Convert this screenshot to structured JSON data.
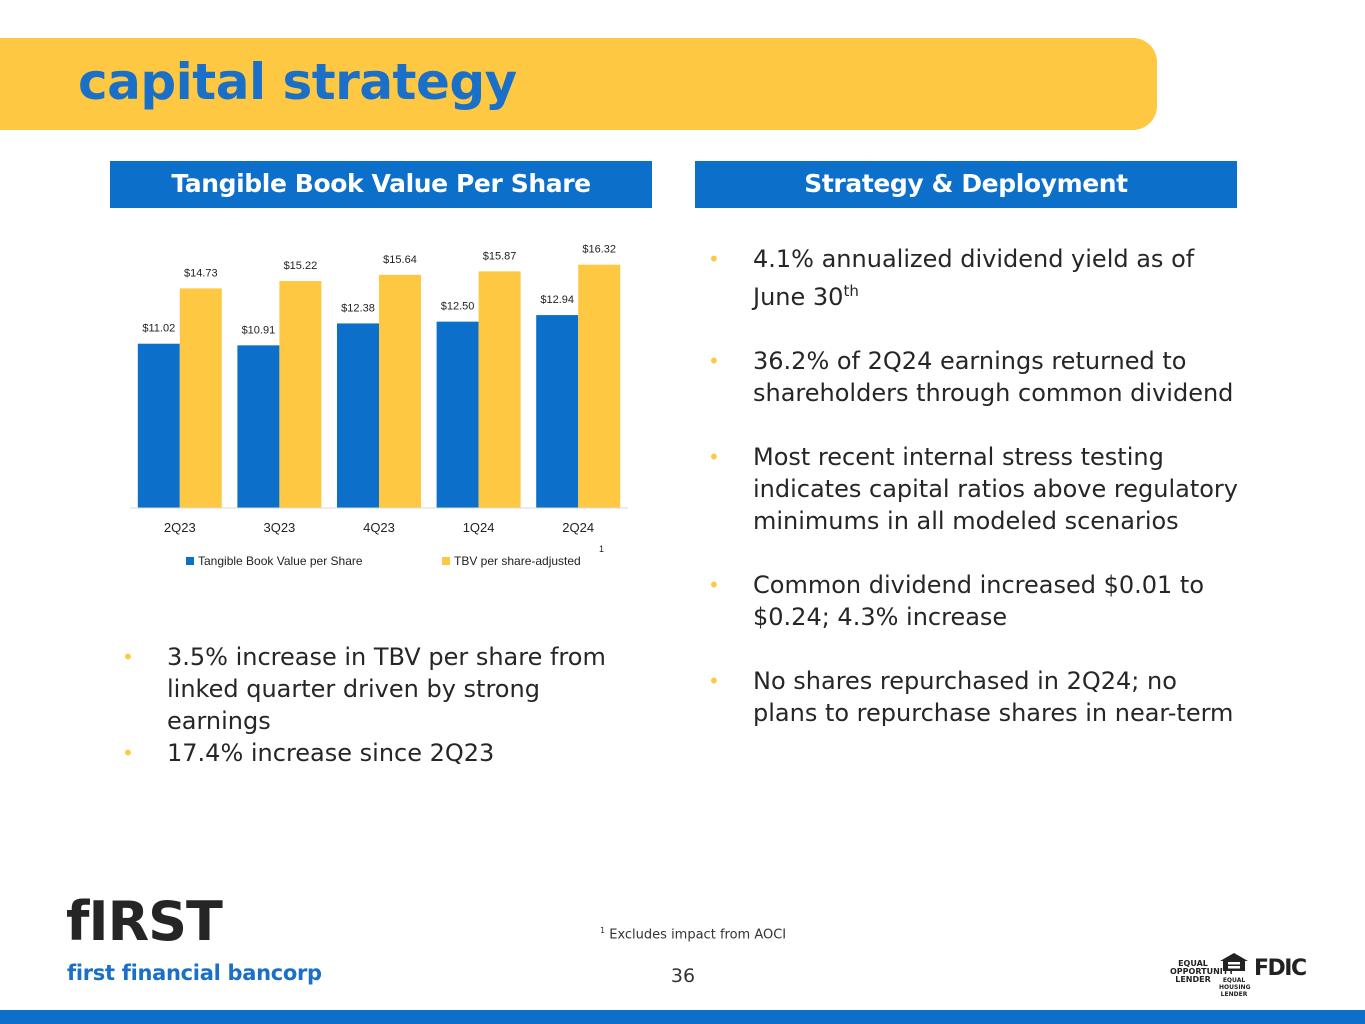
{
  "header": {
    "title": "capital strategy"
  },
  "sections": {
    "left_title": "Tangible Book Value Per Share",
    "right_title": "Strategy & Deployment"
  },
  "chart_data": {
    "type": "bar",
    "categories": [
      "2Q23",
      "3Q23",
      "4Q23",
      "1Q24",
      "2Q24"
    ],
    "series": [
      {
        "name": "Tangible Book Value per Share",
        "values": [
          11.02,
          10.91,
          12.38,
          12.5,
          12.94
        ],
        "labels": [
          "$11.02",
          "$10.91",
          "$12.38",
          "$12.50",
          "$12.94"
        ],
        "color": "#0c6fca"
      },
      {
        "name": "TBV per share-adjusted",
        "values": [
          14.73,
          15.22,
          15.64,
          15.87,
          16.32
        ],
        "labels": [
          "$14.73",
          "$15.22",
          "$15.64",
          "$15.87",
          "$16.32"
        ],
        "color": "#fec843"
      }
    ],
    "legend_superscript": "1",
    "ylim": [
      0,
      16.5
    ],
    "grid": false,
    "legend_position": "bottom"
  },
  "left_bullets": [
    "3.5% increase in TBV per share from linked quarter driven by strong earnings",
    "17.4% increase since 2Q23"
  ],
  "right_bullets": [
    {
      "text": "4.1% annualized dividend yield as of June 30",
      "sup": "th"
    },
    {
      "text": "36.2% of 2Q24 earnings returned to shareholders through common dividend",
      "sup": ""
    },
    {
      "text": "Most recent internal stress testing indicates capital ratios above regulatory minimums in all modeled scenarios",
      "sup": ""
    },
    {
      "text": "Common dividend increased $0.01 to $0.24; 4.3% increase",
      "sup": ""
    },
    {
      "text": "No shares repurchased in 2Q24; no plans to repurchase shares in near-term",
      "sup": ""
    }
  ],
  "footnote": {
    "marker": "1",
    "text": "Excludes impact from AOCI"
  },
  "page_number": "36",
  "logo": {
    "mark": "fIRST",
    "subtitle": "first financial bancorp"
  },
  "badges": {
    "equal_opportunity": "EQUAL OPPORTUNITY LENDER",
    "equal_housing": "EQUAL HOUSING LENDER",
    "fdic": "FDIC"
  },
  "colors": {
    "brand_blue": "#0c6fca",
    "brand_yellow": "#fec843"
  }
}
